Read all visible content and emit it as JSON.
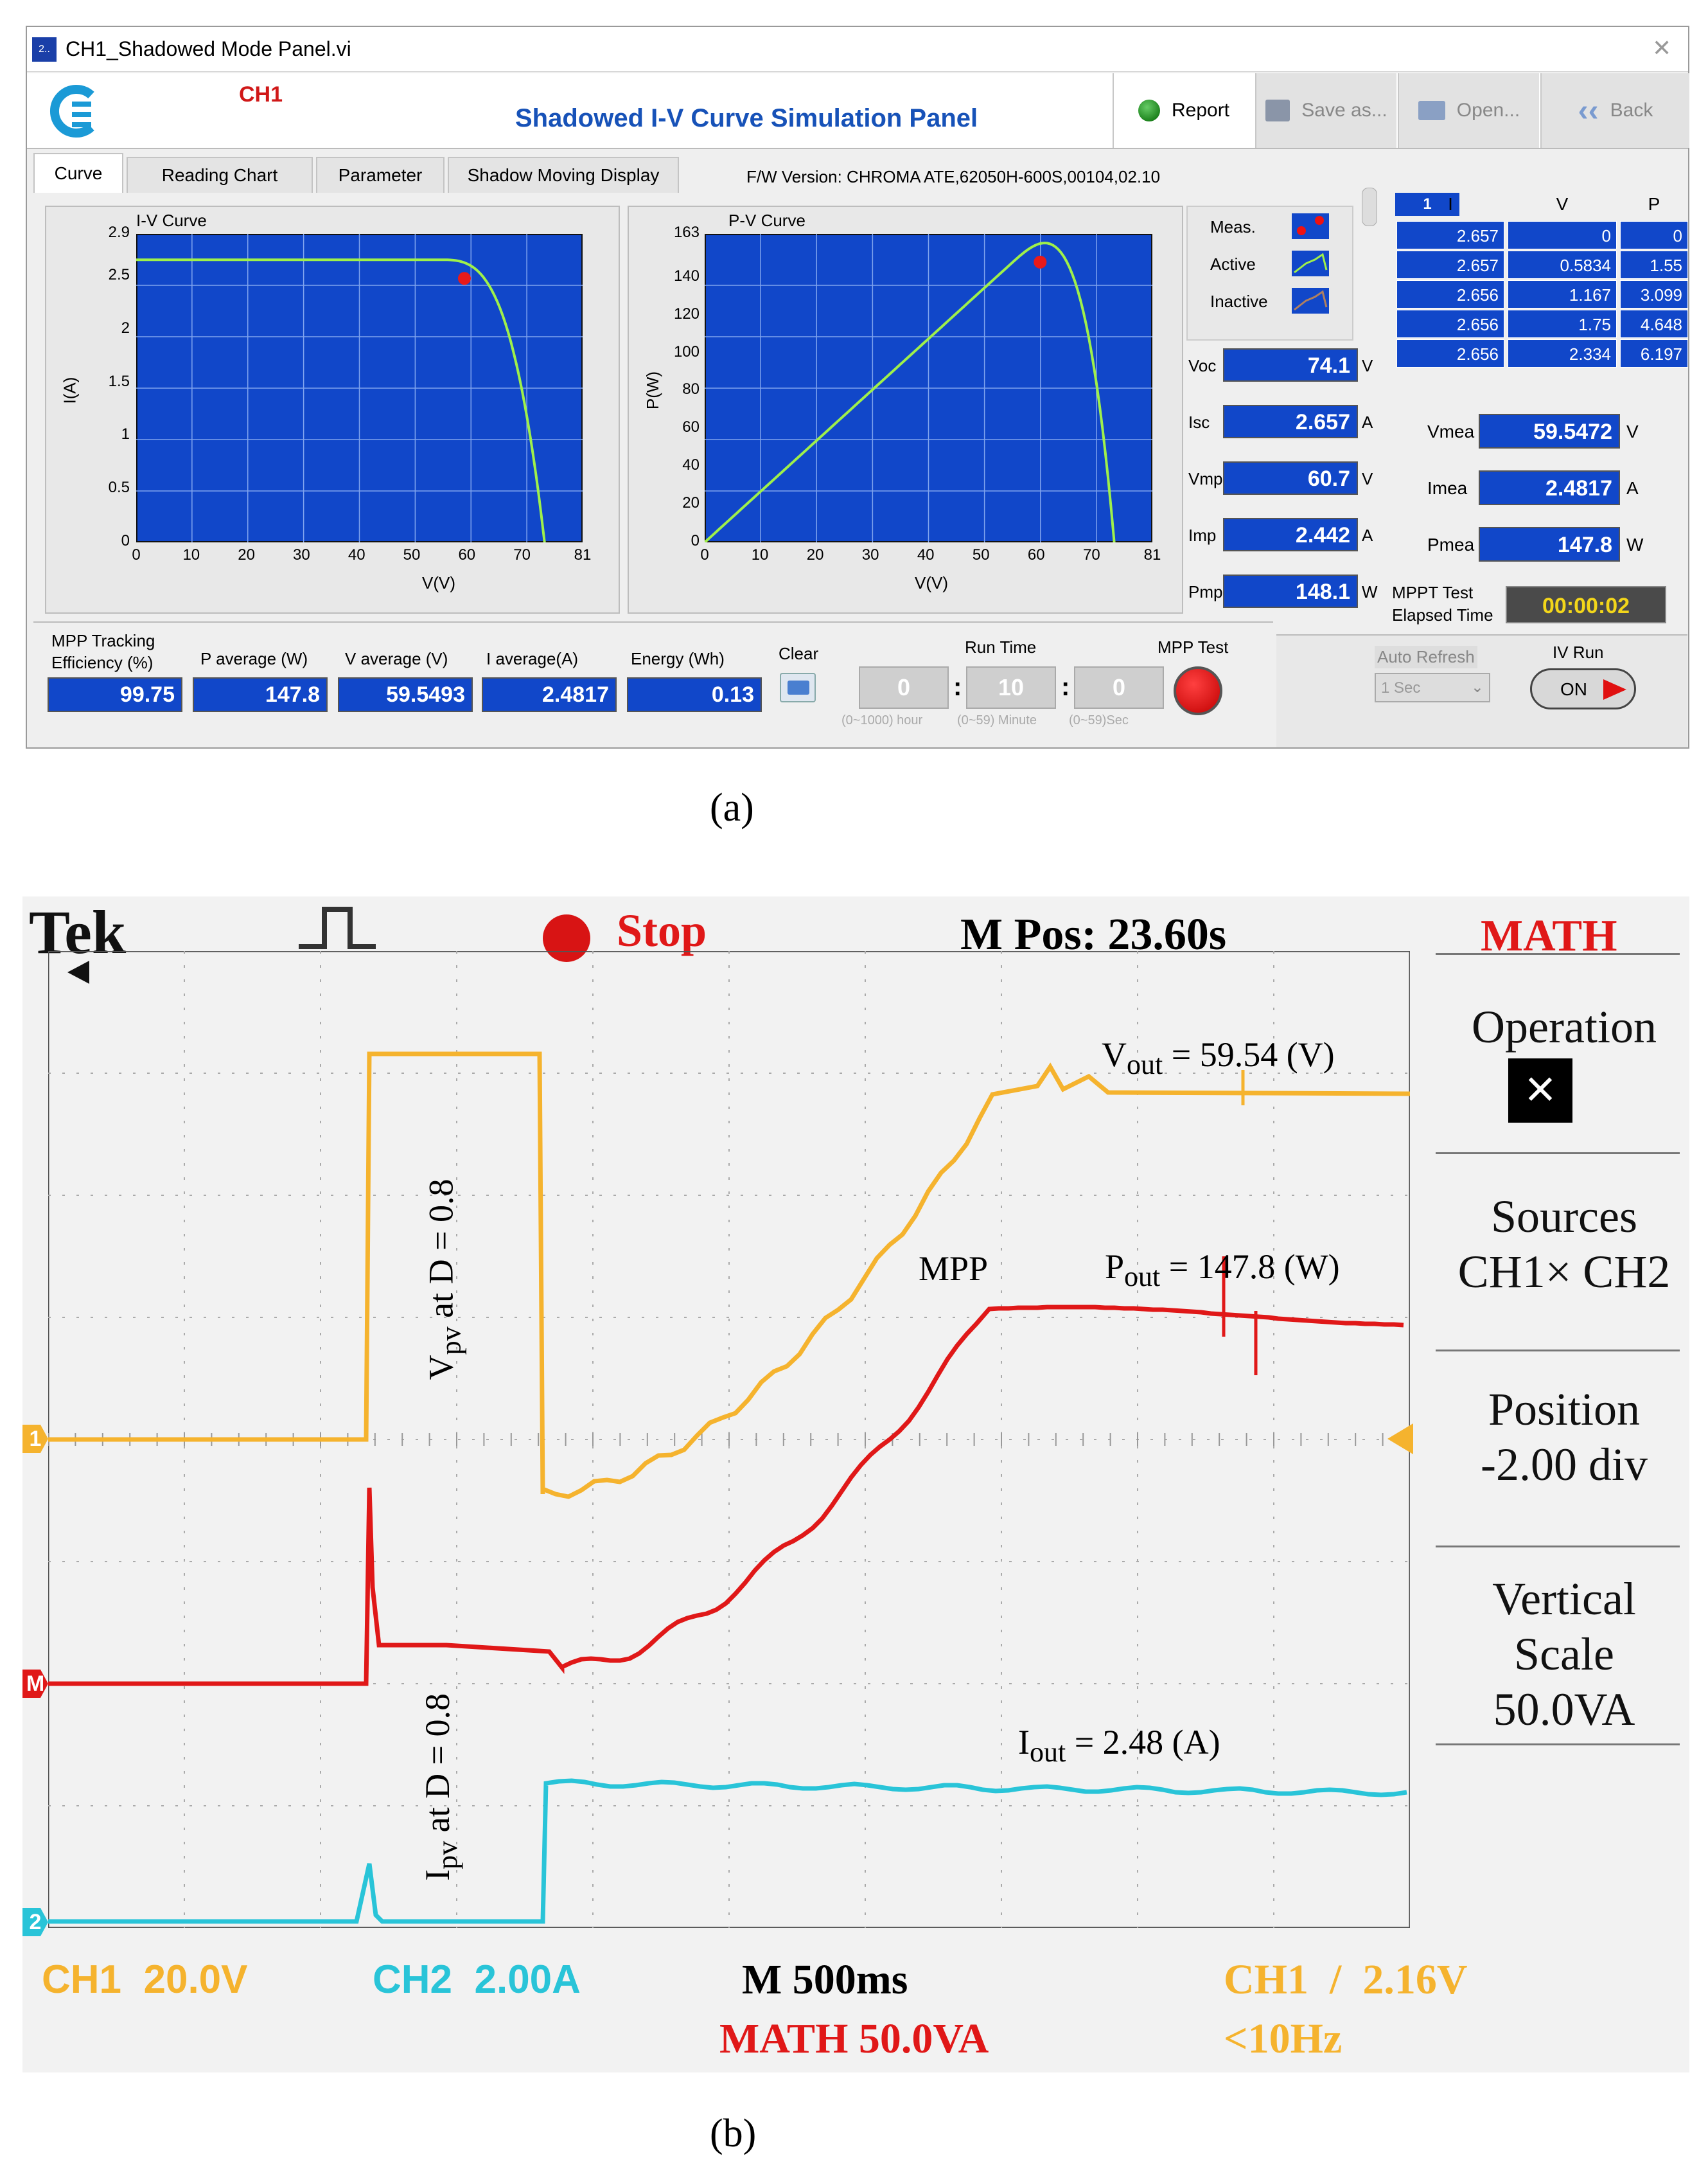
{
  "window": {
    "title": "CH1_Shadowed Mode Panel.vi",
    "app_badge": "2..",
    "close_glyph": "✕"
  },
  "header": {
    "channel": "CH1",
    "title": "Shadowed I-V Curve Simulation Panel",
    "report": "Report",
    "save": "Save as...",
    "open": "Open...",
    "back": "Back",
    "back_glyph": "‹‹"
  },
  "tabs": [
    "Curve",
    "Reading Chart",
    "Parameter",
    "Shadow Moving Display"
  ],
  "fw_version": "F/W Version:  CHROMA ATE,62050H-600S,00104,02.10",
  "iv_chart": {
    "title": "I-V Curve",
    "ylabel": "I(A)",
    "xlabel": "V(V)",
    "yticks": [
      "2.9",
      "2.5",
      "2",
      "1.5",
      "1",
      "0.5",
      "0"
    ],
    "xticks": [
      "0",
      "10",
      "20",
      "30",
      "40",
      "50",
      "60",
      "70",
      "81"
    ]
  },
  "pv_chart": {
    "title": "P-V Curve",
    "ylabel": "P(W)",
    "xlabel": "V(V)",
    "yticks": [
      "163",
      "140",
      "120",
      "100",
      "80",
      "60",
      "40",
      "20",
      "0"
    ],
    "xticks": [
      "0",
      "10",
      "20",
      "30",
      "40",
      "50",
      "60",
      "70",
      "81"
    ]
  },
  "legend": {
    "meas": "Meas.",
    "active": "Active",
    "inactive": "Inactive"
  },
  "readings": [
    {
      "label": "Voc",
      "value": "74.1",
      "unit": "V"
    },
    {
      "label": "Isc",
      "value": "2.657",
      "unit": "A"
    },
    {
      "label": "Vmp",
      "value": "60.7",
      "unit": "V"
    },
    {
      "label": "Imp",
      "value": "2.442",
      "unit": "A"
    },
    {
      "label": "Pmp",
      "value": "148.1",
      "unit": "W"
    }
  ],
  "table": {
    "index": "1",
    "headers": [
      "I",
      "V",
      "P"
    ],
    "rows": [
      [
        "2.657",
        "0",
        "0"
      ],
      [
        "2.657",
        "0.5834",
        "1.55"
      ],
      [
        "2.656",
        "1.167",
        "3.099"
      ],
      [
        "2.656",
        "1.75",
        "4.648"
      ],
      [
        "2.656",
        "2.334",
        "6.197"
      ]
    ]
  },
  "measured": [
    {
      "label": "Vmea",
      "value": "59.5472",
      "unit": "V"
    },
    {
      "label": "Imea",
      "value": "2.4817",
      "unit": "A"
    },
    {
      "label": "Pmea",
      "value": "147.8",
      "unit": "W"
    }
  ],
  "mppt_time": {
    "label1": "MPPT Test",
    "label2": "Elapsed Time",
    "value": "00:00:02"
  },
  "bottom": {
    "eff_label1": "MPP Tracking",
    "eff_label2": "Efficiency (%)",
    "eff": "99.75",
    "pavg_label": "P average  (W)",
    "pavg": "147.8",
    "vavg_label": "V average (V)",
    "vavg": "59.5493",
    "iavg_label": "I average(A)",
    "iavg": "2.4817",
    "energy_label": "Energy  (Wh)",
    "energy": "0.13",
    "clear": "Clear",
    "runtime": "Run Time",
    "hours": "0",
    "minutes": "10",
    "seconds": "0",
    "hours_hint": "(0~1000) hour",
    "min_hint": "(0~59) Minute",
    "sec_hint": "(0~59)Sec",
    "mpp_test": "MPP Test",
    "auto_refresh": "Auto Refresh",
    "refresh_value": "1 Sec",
    "iv_run": "IV Run",
    "on": "ON"
  },
  "caption_a": "(a)",
  "scope": {
    "brand": "Tek",
    "stop": "Stop",
    "mpos": "M Pos: 23.60s",
    "math": "MATH",
    "menu_operation": "Operation",
    "op_symbol": "×",
    "menu_sources1": "Sources",
    "menu_sources2": "CH1× CH2",
    "menu_position1": "Position",
    "menu_position2": "-2.00 div",
    "menu_vscale1": "Vertical",
    "menu_vscale2": "Scale",
    "menu_vscale3": "50.0VA",
    "vout_pre": "V",
    "vout_sub": "out",
    "vout_post": " = 59.54 (V)",
    "pout_pre": "P",
    "pout_sub": "out",
    "pout_post": " = 147.8 (W)",
    "iout_pre": "I",
    "iout_sub": "out",
    "iout_post": " = 2.48 (A)",
    "mpp": "MPP",
    "vpv_pre": "V",
    "vpv_sub": "pv",
    "vpv_post": " at D = 0.8",
    "ipv_pre": "I",
    "ipv_sub": "pv",
    "ipv_post": " at D = 0.8",
    "ch1": "CH1  20.0V",
    "ch2": "CH2  2.00A",
    "timebase": "M 500ms",
    "mathscale": "MATH 50.0VA",
    "trig": "CH1  /  2.16V",
    "freq": "<10Hz",
    "marker1": "1",
    "marker2": "2",
    "markerM": "M"
  },
  "caption_b": "(b)",
  "colors": {
    "yellow": "#f5b32e",
    "red": "#e01818",
    "cyan": "#29c4d8",
    "plot_blue": "#1147c9",
    "curve_green": "#9ff04a"
  }
}
